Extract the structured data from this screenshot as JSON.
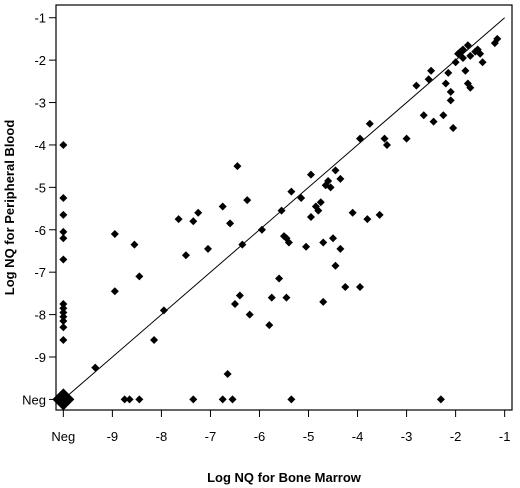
{
  "chart_data": {
    "type": "scatter",
    "xlabel": "Log NQ for Bone Marrow",
    "ylabel": "Log NQ for Peripheral Blood",
    "xlim": [
      -10.15,
      -0.85
    ],
    "ylim": [
      -10.25,
      -0.7
    ],
    "x_ticks": [
      {
        "value": -10,
        "label": "Neg"
      },
      {
        "value": -9,
        "label": "-9"
      },
      {
        "value": -8,
        "label": "-8"
      },
      {
        "value": -7,
        "label": "-7"
      },
      {
        "value": -6,
        "label": "-6"
      },
      {
        "value": -5,
        "label": "-5"
      },
      {
        "value": -4,
        "label": "-4"
      },
      {
        "value": -3,
        "label": "-3"
      },
      {
        "value": -2,
        "label": "-2"
      },
      {
        "value": -1,
        "label": "-1"
      }
    ],
    "y_ticks": [
      {
        "value": -10,
        "label": "Neg"
      },
      {
        "value": -9,
        "label": "-9"
      },
      {
        "value": -8,
        "label": "-8"
      },
      {
        "value": -7,
        "label": "-7"
      },
      {
        "value": -6,
        "label": "-6"
      },
      {
        "value": -5,
        "label": "-5"
      },
      {
        "value": -4,
        "label": "-4"
      },
      {
        "value": -3,
        "label": "-3"
      },
      {
        "value": -2,
        "label": "-2"
      },
      {
        "value": -1,
        "label": "-1"
      }
    ],
    "reference_line": {
      "type": "identity",
      "from": [
        -10,
        -10
      ],
      "to": [
        -1,
        -1
      ]
    },
    "marker": "diamond",
    "grid": false,
    "large_points": [
      {
        "x": -10,
        "y": -10
      }
    ],
    "points": [
      {
        "x": -10,
        "y": -4.0
      },
      {
        "x": -10,
        "y": -5.25
      },
      {
        "x": -10,
        "y": -5.65
      },
      {
        "x": -10,
        "y": -6.05
      },
      {
        "x": -10,
        "y": -6.2
      },
      {
        "x": -10,
        "y": -6.7
      },
      {
        "x": -10,
        "y": -7.75
      },
      {
        "x": -10,
        "y": -7.85
      },
      {
        "x": -10,
        "y": -7.95
      },
      {
        "x": -10,
        "y": -8.05
      },
      {
        "x": -10,
        "y": -8.15
      },
      {
        "x": -10,
        "y": -8.3
      },
      {
        "x": -10,
        "y": -8.6
      },
      {
        "x": -9.35,
        "y": -9.25
      },
      {
        "x": -8.95,
        "y": -7.45
      },
      {
        "x": -8.95,
        "y": -6.1
      },
      {
        "x": -8.75,
        "y": -10
      },
      {
        "x": -8.65,
        "y": -10
      },
      {
        "x": -8.45,
        "y": -10
      },
      {
        "x": -8.55,
        "y": -6.35
      },
      {
        "x": -8.45,
        "y": -7.1
      },
      {
        "x": -8.15,
        "y": -8.6
      },
      {
        "x": -7.95,
        "y": -7.9
      },
      {
        "x": -7.65,
        "y": -5.75
      },
      {
        "x": -7.5,
        "y": -6.6
      },
      {
        "x": -7.35,
        "y": -5.8
      },
      {
        "x": -7.25,
        "y": -5.6
      },
      {
        "x": -7.35,
        "y": -10
      },
      {
        "x": -7.05,
        "y": -6.45
      },
      {
        "x": -6.75,
        "y": -10
      },
      {
        "x": -6.65,
        "y": -9.4
      },
      {
        "x": -6.55,
        "y": -10
      },
      {
        "x": -6.75,
        "y": -5.45
      },
      {
        "x": -6.6,
        "y": -5.85
      },
      {
        "x": -6.45,
        "y": -4.5
      },
      {
        "x": -6.5,
        "y": -7.75
      },
      {
        "x": -6.4,
        "y": -7.55
      },
      {
        "x": -6.35,
        "y": -6.35
      },
      {
        "x": -6.2,
        "y": -8.0
      },
      {
        "x": -6.25,
        "y": -5.3
      },
      {
        "x": -5.95,
        "y": -6.0
      },
      {
        "x": -5.8,
        "y": -8.25
      },
      {
        "x": -5.75,
        "y": -7.6
      },
      {
        "x": -5.6,
        "y": -7.15
      },
      {
        "x": -5.55,
        "y": -5.55
      },
      {
        "x": -5.5,
        "y": -6.15
      },
      {
        "x": -5.45,
        "y": -6.2
      },
      {
        "x": -5.4,
        "y": -6.3
      },
      {
        "x": -5.45,
        "y": -7.6
      },
      {
        "x": -5.35,
        "y": -10
      },
      {
        "x": -5.35,
        "y": -5.1
      },
      {
        "x": -5.15,
        "y": -5.25
      },
      {
        "x": -5.05,
        "y": -6.4
      },
      {
        "x": -4.95,
        "y": -5.7
      },
      {
        "x": -4.95,
        "y": -4.7
      },
      {
        "x": -4.85,
        "y": -5.45
      },
      {
        "x": -4.8,
        "y": -5.55
      },
      {
        "x": -4.75,
        "y": -5.35
      },
      {
        "x": -4.7,
        "y": -7.7
      },
      {
        "x": -4.7,
        "y": -6.3
      },
      {
        "x": -4.65,
        "y": -4.95
      },
      {
        "x": -4.6,
        "y": -4.85
      },
      {
        "x": -4.55,
        "y": -5.0
      },
      {
        "x": -4.5,
        "y": -6.2
      },
      {
        "x": -4.45,
        "y": -6.85
      },
      {
        "x": -4.45,
        "y": -4.6
      },
      {
        "x": -4.35,
        "y": -4.8
      },
      {
        "x": -4.35,
        "y": -6.45
      },
      {
        "x": -4.25,
        "y": -7.35
      },
      {
        "x": -4.1,
        "y": -5.6
      },
      {
        "x": -3.95,
        "y": -3.85
      },
      {
        "x": -3.95,
        "y": -7.35
      },
      {
        "x": -3.8,
        "y": -5.75
      },
      {
        "x": -3.75,
        "y": -3.5
      },
      {
        "x": -3.55,
        "y": -5.65
      },
      {
        "x": -3.45,
        "y": -3.85
      },
      {
        "x": -3.4,
        "y": -4.0
      },
      {
        "x": -3.0,
        "y": -3.85
      },
      {
        "x": -2.8,
        "y": -2.6
      },
      {
        "x": -2.65,
        "y": -3.3
      },
      {
        "x": -2.55,
        "y": -2.45
      },
      {
        "x": -2.5,
        "y": -2.25
      },
      {
        "x": -2.45,
        "y": -3.45
      },
      {
        "x": -2.3,
        "y": -10
      },
      {
        "x": -2.25,
        "y": -3.3
      },
      {
        "x": -2.2,
        "y": -2.55
      },
      {
        "x": -2.05,
        "y": -3.6
      },
      {
        "x": -2.15,
        "y": -2.3
      },
      {
        "x": -2.1,
        "y": -2.75
      },
      {
        "x": -2.1,
        "y": -2.95
      },
      {
        "x": -2.0,
        "y": -2.05
      },
      {
        "x": -1.95,
        "y": -1.85
      },
      {
        "x": -1.9,
        "y": -1.8
      },
      {
        "x": -1.85,
        "y": -1.75
      },
      {
        "x": -1.85,
        "y": -1.95
      },
      {
        "x": -1.8,
        "y": -2.25
      },
      {
        "x": -1.75,
        "y": -1.65
      },
      {
        "x": -1.75,
        "y": -2.55
      },
      {
        "x": -1.7,
        "y": -2.65
      },
      {
        "x": -1.7,
        "y": -1.9
      },
      {
        "x": -1.6,
        "y": -1.8
      },
      {
        "x": -1.55,
        "y": -1.75
      },
      {
        "x": -1.5,
        "y": -1.85
      },
      {
        "x": -1.45,
        "y": -2.05
      },
      {
        "x": -1.2,
        "y": -1.6
      },
      {
        "x": -1.15,
        "y": -1.5
      }
    ]
  }
}
